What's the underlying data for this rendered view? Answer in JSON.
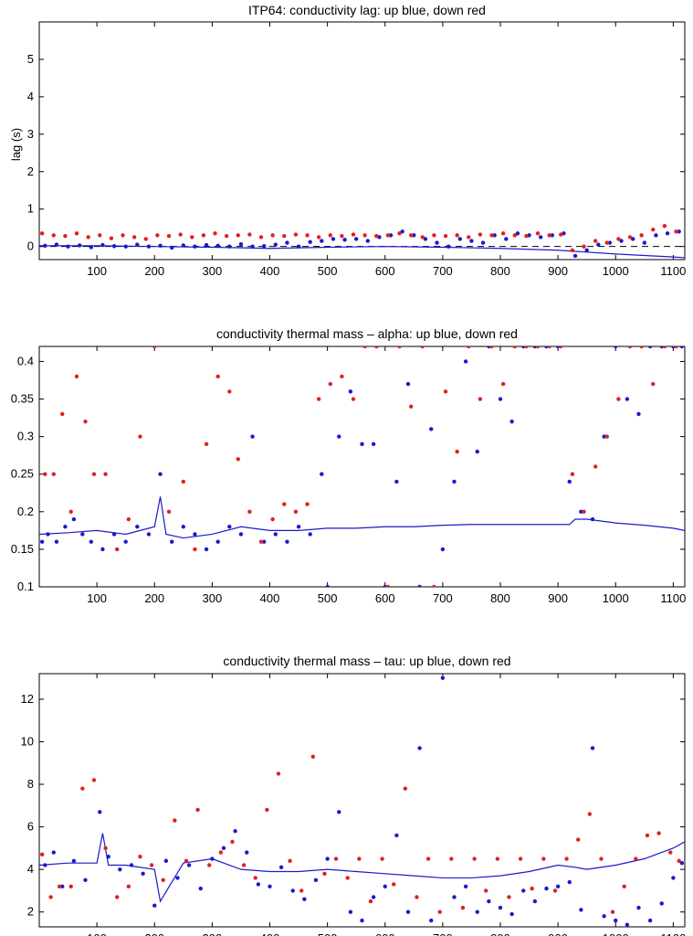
{
  "colors": {
    "up": "#1a1acc",
    "down": "#e02020",
    "axis": "#000000"
  },
  "chart_data": [
    {
      "type": "scatter",
      "title": "ITP64: conductivity lag: up blue, down red",
      "xlabel": "",
      "ylabel": "lag (s)",
      "xlim": [
        0,
        1120
      ],
      "ylim": [
        -0.35,
        6.0
      ],
      "xticks": [
        100,
        200,
        300,
        400,
        500,
        600,
        700,
        800,
        900,
        1000,
        1100
      ],
      "yticks": [
        0,
        1,
        2,
        3,
        4,
        5
      ],
      "ref_line": {
        "style": "dashed",
        "y": 0
      },
      "series": [
        {
          "name": "up",
          "kind": "points",
          "color": "up",
          "x": [
            10,
            30,
            50,
            70,
            90,
            110,
            130,
            150,
            170,
            190,
            210,
            230,
            250,
            270,
            290,
            310,
            330,
            350,
            370,
            390,
            410,
            430,
            450,
            470,
            490,
            510,
            530,
            550,
            570,
            590,
            610,
            630,
            650,
            670,
            690,
            710,
            730,
            750,
            770,
            790,
            810,
            830,
            850,
            870,
            890,
            910,
            930,
            950,
            970,
            990,
            1010,
            1030,
            1050,
            1070,
            1090,
            1110
          ],
          "y": [
            0.02,
            0.05,
            0.0,
            0.03,
            -0.02,
            0.04,
            0.01,
            0.0,
            0.05,
            0.0,
            0.02,
            -0.03,
            0.03,
            0.0,
            0.04,
            0.02,
            0.0,
            0.06,
            0.0,
            0.01,
            0.05,
            0.1,
            0.0,
            0.12,
            0.15,
            0.2,
            0.18,
            0.2,
            0.15,
            0.25,
            0.3,
            0.4,
            0.3,
            0.2,
            0.1,
            0.0,
            0.2,
            0.15,
            0.1,
            0.3,
            0.2,
            0.35,
            0.3,
            0.25,
            0.3,
            0.35,
            -0.25,
            -0.1,
            0.05,
            0.1,
            0.15,
            0.2,
            0.1,
            0.3,
            0.35,
            0.4
          ]
        },
        {
          "name": "down",
          "kind": "points",
          "color": "down",
          "x": [
            5,
            25,
            45,
            65,
            85,
            105,
            125,
            145,
            165,
            185,
            205,
            225,
            245,
            265,
            285,
            305,
            325,
            345,
            365,
            385,
            405,
            425,
            445,
            465,
            485,
            505,
            525,
            545,
            565,
            585,
            605,
            625,
            645,
            665,
            685,
            705,
            725,
            745,
            765,
            785,
            805,
            825,
            845,
            865,
            885,
            905,
            925,
            945,
            965,
            985,
            1005,
            1025,
            1045,
            1065,
            1085,
            1105
          ],
          "y": [
            0.35,
            0.3,
            0.28,
            0.35,
            0.25,
            0.3,
            0.22,
            0.3,
            0.25,
            0.2,
            0.3,
            0.28,
            0.32,
            0.25,
            0.3,
            0.35,
            0.28,
            0.3,
            0.32,
            0.25,
            0.3,
            0.28,
            0.32,
            0.3,
            0.25,
            0.3,
            0.28,
            0.32,
            0.3,
            0.28,
            0.3,
            0.35,
            0.3,
            0.25,
            0.3,
            0.28,
            0.3,
            0.25,
            0.32,
            0.3,
            0.35,
            0.3,
            0.28,
            0.35,
            0.3,
            0.32,
            -0.1,
            0.0,
            0.15,
            0.1,
            0.2,
            0.25,
            0.3,
            0.45,
            0.55,
            0.4
          ]
        },
        {
          "name": "filtered",
          "kind": "line",
          "color": "up",
          "x": [
            0,
            100,
            200,
            300,
            400,
            500,
            600,
            700,
            800,
            900,
            1000,
            1100,
            1120
          ],
          "y": [
            0.02,
            0.02,
            0.0,
            -0.02,
            -0.05,
            -0.02,
            0.0,
            -0.02,
            -0.05,
            -0.1,
            -0.2,
            -0.28,
            -0.3
          ]
        }
      ]
    },
    {
      "type": "scatter",
      "title": "conductivity thermal mass – alpha: up blue, down red",
      "xlabel": "",
      "ylabel": "",
      "xlim": [
        0,
        1120
      ],
      "ylim": [
        0.1,
        0.42
      ],
      "xticks": [
        100,
        200,
        300,
        400,
        500,
        600,
        700,
        800,
        900,
        1000,
        1100
      ],
      "yticks": [
        0.1,
        0.15,
        0.2,
        0.25,
        0.3,
        0.35,
        0.4
      ],
      "series": [
        {
          "name": "up",
          "kind": "points",
          "color": "up",
          "x": [
            5,
            15,
            30,
            45,
            60,
            75,
            90,
            110,
            130,
            150,
            170,
            190,
            210,
            230,
            250,
            270,
            290,
            310,
            330,
            350,
            370,
            390,
            410,
            430,
            450,
            470,
            490,
            500,
            520,
            540,
            560,
            580,
            600,
            620,
            640,
            660,
            680,
            700,
            720,
            740,
            760,
            780,
            800,
            820,
            840,
            860,
            880,
            900,
            920,
            940,
            960,
            980,
            1000,
            1020,
            1040,
            1060,
            1080,
            1100,
            1115
          ],
          "y": [
            0.16,
            0.17,
            0.16,
            0.18,
            0.19,
            0.17,
            0.16,
            0.15,
            0.17,
            0.16,
            0.18,
            0.17,
            0.25,
            0.16,
            0.18,
            0.17,
            0.15,
            0.16,
            0.18,
            0.17,
            0.3,
            0.16,
            0.17,
            0.16,
            0.18,
            0.17,
            0.25,
            0.1,
            0.3,
            0.36,
            0.29,
            0.29,
            0.1,
            0.24,
            0.37,
            0.1,
            0.31,
            0.15,
            0.24,
            0.4,
            0.28,
            0.42,
            0.35,
            0.32,
            0.42,
            0.42,
            0.42,
            0.42,
            0.24,
            0.2,
            0.19,
            0.3,
            0.42,
            0.35,
            0.33,
            0.42,
            0.42,
            0.42,
            0.42
          ]
        },
        {
          "name": "down",
          "kind": "points",
          "color": "down",
          "x": [
            10,
            25,
            40,
            55,
            65,
            80,
            95,
            115,
            135,
            155,
            175,
            200,
            225,
            250,
            270,
            290,
            310,
            330,
            345,
            365,
            385,
            405,
            425,
            445,
            465,
            485,
            505,
            525,
            545,
            565,
            585,
            605,
            625,
            645,
            665,
            685,
            705,
            725,
            745,
            765,
            785,
            805,
            825,
            845,
            865,
            885,
            905,
            925,
            945,
            965,
            985,
            1005,
            1025,
            1045,
            1065,
            1085,
            1105
          ],
          "y": [
            0.25,
            0.25,
            0.33,
            0.2,
            0.38,
            0.32,
            0.25,
            0.25,
            0.15,
            0.19,
            0.3,
            0.42,
            0.2,
            0.24,
            0.15,
            0.29,
            0.38,
            0.36,
            0.27,
            0.2,
            0.16,
            0.19,
            0.21,
            0.2,
            0.21,
            0.35,
            0.37,
            0.38,
            0.35,
            0.42,
            0.42,
            0.1,
            0.42,
            0.34,
            0.42,
            0.1,
            0.36,
            0.28,
            0.42,
            0.35,
            0.42,
            0.37,
            0.42,
            0.42,
            0.42,
            0.42,
            0.42,
            0.25,
            0.2,
            0.26,
            0.3,
            0.35,
            0.42,
            0.42,
            0.37,
            0.42,
            0.42
          ]
        },
        {
          "name": "filtered",
          "kind": "line",
          "color": "up",
          "x": [
            0,
            50,
            100,
            150,
            200,
            210,
            220,
            250,
            300,
            350,
            400,
            450,
            500,
            550,
            600,
            650,
            700,
            750,
            800,
            850,
            900,
            920,
            930,
            950,
            1000,
            1050,
            1100,
            1120
          ],
          "y": [
            0.17,
            0.172,
            0.175,
            0.17,
            0.18,
            0.22,
            0.17,
            0.165,
            0.17,
            0.18,
            0.175,
            0.175,
            0.178,
            0.178,
            0.18,
            0.18,
            0.182,
            0.183,
            0.183,
            0.183,
            0.183,
            0.183,
            0.19,
            0.19,
            0.185,
            0.182,
            0.178,
            0.175
          ]
        }
      ]
    },
    {
      "type": "scatter",
      "title": "conductivity thermal mass – tau: up blue, down red",
      "xlabel": "",
      "ylabel": "",
      "xlim": [
        0,
        1120
      ],
      "ylim": [
        1.3,
        13.2
      ],
      "xticks": [
        100,
        200,
        300,
        400,
        500,
        600,
        700,
        800,
        900,
        1000,
        1100
      ],
      "yticks": [
        2,
        4,
        6,
        8,
        10,
        12
      ],
      "series": [
        {
          "name": "up",
          "kind": "points",
          "color": "up",
          "x": [
            10,
            25,
            40,
            60,
            80,
            105,
            120,
            140,
            160,
            180,
            200,
            220,
            240,
            260,
            280,
            300,
            320,
            340,
            360,
            380,
            400,
            420,
            440,
            460,
            480,
            500,
            520,
            540,
            560,
            580,
            600,
            620,
            640,
            660,
            680,
            700,
            720,
            740,
            760,
            780,
            800,
            820,
            840,
            860,
            880,
            900,
            920,
            940,
            960,
            980,
            1000,
            1020,
            1040,
            1060,
            1080,
            1100,
            1115
          ],
          "y": [
            4.2,
            4.8,
            3.2,
            4.4,
            3.5,
            6.7,
            4.6,
            4.0,
            4.2,
            3.8,
            2.3,
            4.4,
            3.6,
            4.2,
            3.1,
            4.5,
            5.0,
            5.8,
            4.8,
            3.3,
            3.2,
            4.1,
            3.0,
            2.6,
            3.5,
            4.5,
            6.7,
            2.0,
            1.6,
            2.7,
            3.2,
            5.6,
            2.0,
            9.7,
            1.6,
            13.0,
            2.7,
            3.2,
            2.0,
            2.5,
            2.2,
            1.9,
            3.0,
            2.5,
            3.1,
            3.2,
            3.4,
            2.1,
            9.7,
            1.8,
            1.6,
            1.4,
            2.2,
            1.6,
            2.4,
            3.6,
            4.3
          ]
        },
        {
          "name": "down",
          "kind": "points",
          "color": "down",
          "x": [
            5,
            20,
            35,
            55,
            75,
            95,
            115,
            135,
            155,
            175,
            195,
            215,
            235,
            255,
            275,
            295,
            315,
            335,
            355,
            375,
            395,
            415,
            435,
            455,
            475,
            495,
            515,
            535,
            555,
            575,
            595,
            615,
            635,
            655,
            675,
            695,
            715,
            735,
            755,
            775,
            795,
            815,
            835,
            855,
            875,
            895,
            915,
            935,
            955,
            975,
            995,
            1015,
            1035,
            1055,
            1075,
            1095,
            1110
          ],
          "y": [
            4.7,
            2.7,
            3.2,
            3.2,
            7.8,
            8.2,
            5.0,
            2.7,
            3.2,
            4.6,
            4.2,
            3.5,
            6.3,
            4.4,
            6.8,
            4.2,
            4.8,
            5.3,
            4.2,
            3.6,
            6.8,
            8.5,
            4.4,
            3.0,
            9.3,
            3.8,
            4.5,
            3.6,
            4.5,
            2.5,
            4.5,
            3.3,
            7.8,
            2.7,
            4.5,
            2.0,
            4.5,
            2.2,
            4.5,
            3.0,
            4.5,
            2.7,
            4.5,
            3.1,
            4.5,
            3.0,
            4.5,
            5.4,
            6.6,
            4.5,
            2.0,
            3.2,
            4.5,
            5.6,
            5.7,
            4.8,
            4.4
          ]
        },
        {
          "name": "filtered",
          "kind": "line",
          "color": "up",
          "x": [
            0,
            50,
            100,
            110,
            120,
            150,
            200,
            210,
            250,
            300,
            350,
            400,
            450,
            500,
            550,
            600,
            650,
            700,
            750,
            800,
            850,
            900,
            930,
            950,
            1000,
            1050,
            1100,
            1120
          ],
          "y": [
            4.2,
            4.3,
            4.3,
            5.7,
            4.2,
            4.2,
            4.0,
            2.5,
            4.3,
            4.5,
            4.0,
            3.9,
            3.9,
            4.0,
            3.9,
            3.8,
            3.7,
            3.6,
            3.6,
            3.7,
            3.9,
            4.2,
            4.1,
            4.0,
            4.2,
            4.5,
            5.0,
            5.3
          ]
        }
      ]
    }
  ]
}
